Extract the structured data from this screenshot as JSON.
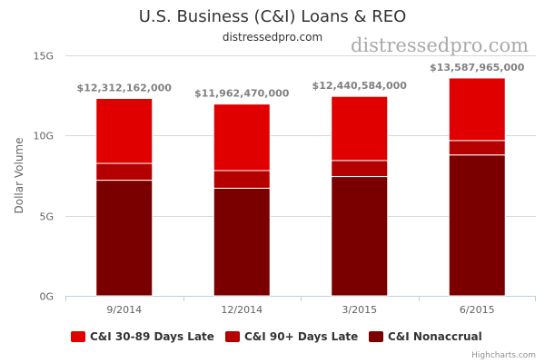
{
  "chart_data": {
    "type": "bar",
    "stacked": true,
    "title": "U.S. Business (C&I) Loans & REO",
    "subtitle": "distressedpro.com",
    "watermark": "distressedpro.com",
    "ylabel": "Dollar Volume",
    "xlabel": "",
    "ylim": [
      0,
      15000000000
    ],
    "yticks": [
      "0G",
      "5G",
      "10G",
      "15G"
    ],
    "ytick_values": [
      0,
      5000000000,
      10000000000,
      15000000000
    ],
    "grid": true,
    "legend_position": "bottom",
    "categories": [
      "9/2014",
      "12/2014",
      "3/2015",
      "6/2015"
    ],
    "series": [
      {
        "name": "C&I 30-89 Days Late",
        "color": "#e00000",
        "values": [
          4050000000,
          4150000000,
          4000000000,
          3900000000
        ]
      },
      {
        "name": "C&I 90+ Days Late",
        "color": "#b50000",
        "values": [
          1050000000,
          1100000000,
          1000000000,
          900000000
        ]
      },
      {
        "name": "C&I Nonaccrual",
        "color": "#7a0000",
        "values": [
          7212162000,
          6712470000,
          7440584000,
          8787965000
        ]
      }
    ],
    "totals": [
      12312162000,
      11962470000,
      12440584000,
      13587965000
    ],
    "total_labels": [
      "$12,312,162,000",
      "$11,962,470,000",
      "$12,440,584,000",
      "$13,587,965,000"
    ]
  },
  "credits": "Highcharts.com"
}
